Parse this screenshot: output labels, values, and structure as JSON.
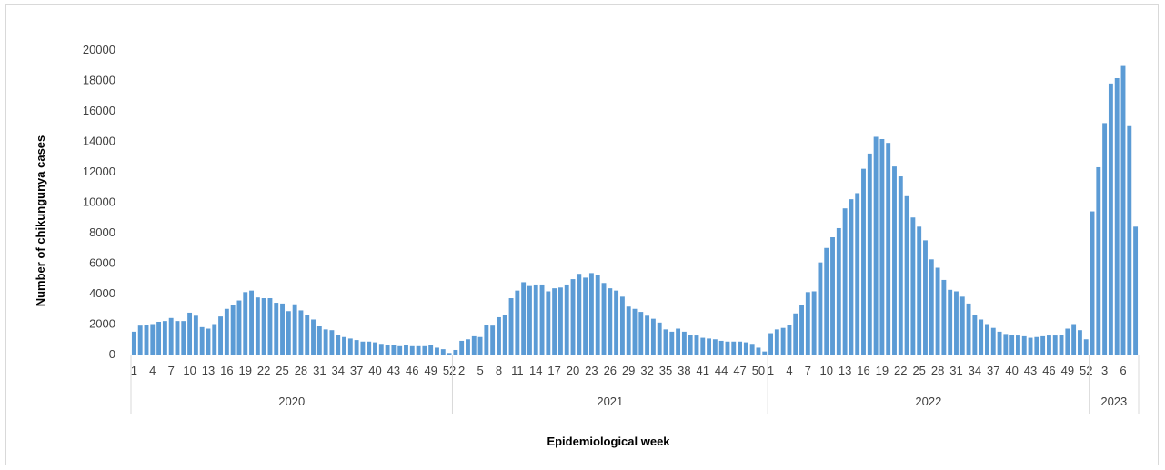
{
  "chart_data": {
    "type": "bar",
    "xlabel": "Epidemiological week",
    "ylabel": "Number of chikungunya cases",
    "ylim": [
      0,
      20000
    ],
    "yticks": [
      0,
      2000,
      4000,
      6000,
      8000,
      10000,
      12000,
      14000,
      16000,
      18000,
      20000
    ],
    "grid": false,
    "color": "#5b9bd5",
    "groups": [
      {
        "year": "2020",
        "weeks": [
          1,
          2,
          3,
          4,
          5,
          6,
          7,
          8,
          9,
          10,
          11,
          12,
          13,
          14,
          15,
          16,
          17,
          18,
          19,
          20,
          21,
          22,
          23,
          24,
          25,
          26,
          27,
          28,
          29,
          30,
          31,
          32,
          33,
          34,
          35,
          36,
          37,
          38,
          39,
          40,
          41,
          42,
          43,
          44,
          45,
          46,
          47,
          48,
          49,
          50,
          51,
          52
        ],
        "tick_labels": [
          "1",
          "4",
          "7",
          "10",
          "13",
          "16",
          "19",
          "22",
          "25",
          "28",
          "31",
          "34",
          "37",
          "40",
          "43",
          "46",
          "49",
          "52"
        ],
        "values": [
          1500,
          1900,
          1950,
          2000,
          2150,
          2200,
          2400,
          2200,
          2200,
          2750,
          2550,
          1800,
          1700,
          2000,
          2500,
          3000,
          3250,
          3550,
          4100,
          4200,
          3750,
          3700,
          3700,
          3400,
          3350,
          2850,
          3300,
          2900,
          2600,
          2300,
          1850,
          1650,
          1600,
          1300,
          1150,
          1050,
          950,
          850,
          850,
          800,
          700,
          650,
          600,
          550,
          600,
          550,
          550,
          550,
          600,
          450,
          350,
          100
        ]
      },
      {
        "year": "2021",
        "weeks": [
          1,
          2,
          3,
          4,
          5,
          6,
          7,
          8,
          9,
          10,
          11,
          12,
          13,
          14,
          15,
          16,
          17,
          18,
          19,
          20,
          21,
          22,
          23,
          24,
          25,
          26,
          27,
          28,
          29,
          30,
          31,
          32,
          33,
          34,
          35,
          36,
          37,
          38,
          39,
          40,
          41,
          42,
          43,
          44,
          45,
          46,
          47,
          48,
          49,
          50,
          51
        ],
        "tick_labels": [
          "2",
          "5",
          "8",
          "11",
          "14",
          "17",
          "20",
          "23",
          "26",
          "29",
          "32",
          "35",
          "38",
          "41",
          "44",
          "47",
          "50"
        ],
        "values": [
          300,
          900,
          1000,
          1200,
          1150,
          1950,
          1900,
          2450,
          2600,
          3700,
          4200,
          4750,
          4500,
          4600,
          4600,
          4150,
          4350,
          4400,
          4600,
          4950,
          5300,
          5050,
          5350,
          5200,
          4700,
          4350,
          4200,
          3800,
          3150,
          3000,
          2800,
          2550,
          2350,
          2100,
          1650,
          1500,
          1700,
          1500,
          1300,
          1250,
          1100,
          1050,
          1000,
          900,
          850,
          850,
          850,
          800,
          700,
          450,
          200
        ]
      },
      {
        "year": "2022",
        "weeks": [
          1,
          2,
          3,
          4,
          5,
          6,
          7,
          8,
          9,
          10,
          11,
          12,
          13,
          14,
          15,
          16,
          17,
          18,
          19,
          20,
          21,
          22,
          23,
          24,
          25,
          26,
          27,
          28,
          29,
          30,
          31,
          32,
          33,
          34,
          35,
          36,
          37,
          38,
          39,
          40,
          41,
          42,
          43,
          44,
          45,
          46,
          47,
          48,
          49,
          50,
          51,
          52
        ],
        "tick_labels": [
          "1",
          "4",
          "7",
          "10",
          "13",
          "16",
          "19",
          "22",
          "25",
          "28",
          "31",
          "34",
          "37",
          "40",
          "43",
          "46",
          "49",
          "52"
        ],
        "values": [
          1400,
          1650,
          1750,
          1950,
          2700,
          3250,
          4100,
          4150,
          6050,
          7000,
          7700,
          8300,
          9600,
          10200,
          10600,
          12200,
          13200,
          14300,
          14150,
          13900,
          12350,
          11700,
          10400,
          9000,
          8400,
          7500,
          6250,
          5700,
          4900,
          4250,
          4150,
          3800,
          3350,
          2600,
          2300,
          2000,
          1750,
          1500,
          1350,
          1300,
          1250,
          1200,
          1100,
          1150,
          1200,
          1250,
          1250,
          1300,
          1700,
          2000,
          1600,
          1000
        ]
      },
      {
        "year": "2023",
        "weeks": [
          1,
          2,
          3,
          4,
          5,
          6,
          7,
          8
        ],
        "tick_labels": [
          "3",
          "6"
        ],
        "values": [
          9400,
          12300,
          15200,
          17800,
          18150,
          18950,
          15000,
          8400
        ]
      }
    ]
  }
}
